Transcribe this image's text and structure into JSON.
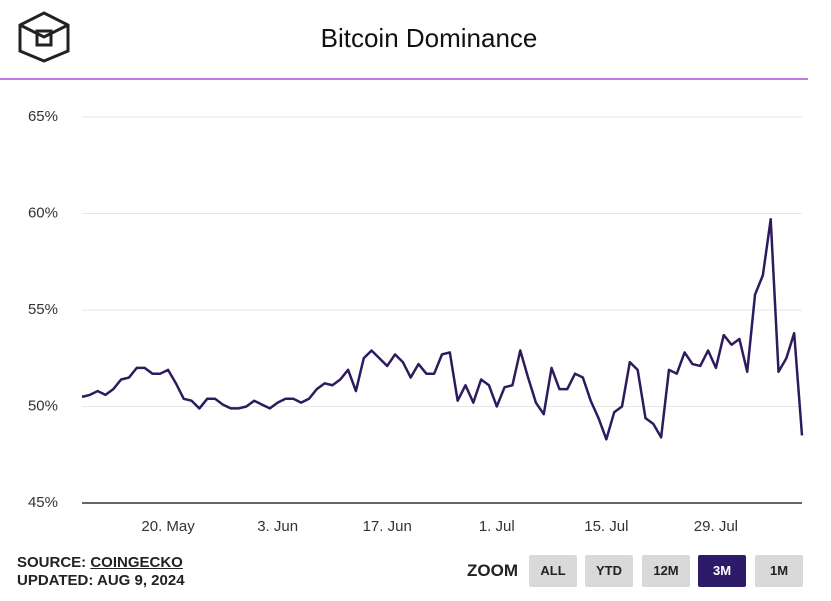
{
  "chart_data": {
    "type": "line",
    "title": "Bitcoin Dominance",
    "categories": [
      null,
      null,
      null,
      null,
      null,
      null,
      null,
      null,
      null,
      null,
      null,
      "20. May",
      null,
      null,
      null,
      null,
      null,
      null,
      null,
      null,
      null,
      null,
      null,
      null,
      null,
      "3. Jun",
      null,
      null,
      null,
      null,
      null,
      null,
      null,
      null,
      null,
      null,
      null,
      null,
      null,
      "17. Jun",
      null,
      null,
      null,
      null,
      null,
      null,
      null,
      null,
      null,
      null,
      null,
      null,
      null,
      "1. Jul",
      null,
      null,
      null,
      null,
      null,
      null,
      null,
      null,
      null,
      null,
      null,
      null,
      null,
      "15. Jul",
      null,
      null,
      null,
      null,
      null,
      null,
      null,
      null,
      null,
      null,
      null,
      null,
      null,
      "29. Jul",
      null,
      null,
      null,
      null,
      null,
      null,
      null,
      null,
      null,
      null,
      null
    ],
    "values": [
      50.5,
      50.6,
      50.8,
      50.6,
      50.9,
      51.4,
      51.5,
      52.0,
      52.0,
      51.7,
      51.7,
      51.9,
      51.2,
      50.4,
      50.3,
      49.9,
      50.4,
      50.4,
      50.1,
      49.9,
      49.9,
      50.0,
      50.3,
      50.1,
      49.9,
      50.2,
      50.4,
      50.4,
      50.2,
      50.4,
      50.9,
      51.2,
      51.1,
      51.4,
      51.9,
      50.8,
      52.5,
      52.9,
      52.5,
      52.1,
      52.7,
      52.3,
      51.5,
      52.2,
      51.7,
      51.7,
      52.7,
      52.8,
      50.3,
      51.1,
      50.2,
      51.4,
      51.1,
      50.0,
      51.0,
      51.1,
      52.9,
      51.5,
      50.2,
      49.6,
      52.0,
      50.9,
      50.9,
      51.7,
      51.5,
      50.3,
      49.4,
      48.3,
      49.7,
      50.0,
      52.3,
      51.9,
      49.4,
      49.1,
      48.4,
      51.9,
      51.7,
      52.8,
      52.2,
      52.1,
      52.9,
      52.0,
      53.7,
      53.2,
      53.5,
      51.8,
      55.8,
      56.8,
      59.7,
      51.8,
      52.5,
      53.8,
      48.5
    ],
    "color": "#2d1b5e",
    "ylim": [
      45,
      65
    ],
    "yticks": [
      {
        "value": 45,
        "label": "45%"
      },
      {
        "value": 50,
        "label": "50%"
      },
      {
        "value": 55,
        "label": "55%"
      },
      {
        "value": 60,
        "label": "60%"
      },
      {
        "value": 65,
        "label": "65%"
      }
    ],
    "grid": true
  },
  "footer": {
    "source_label": "SOURCE:",
    "source": "COINGECKO",
    "updated": "UPDATED: AUG 9, 2024"
  },
  "zoom": {
    "label": "ZOOM",
    "buttons": [
      "ALL",
      "YTD",
      "12M",
      "3M",
      "1M"
    ],
    "active": 3
  }
}
